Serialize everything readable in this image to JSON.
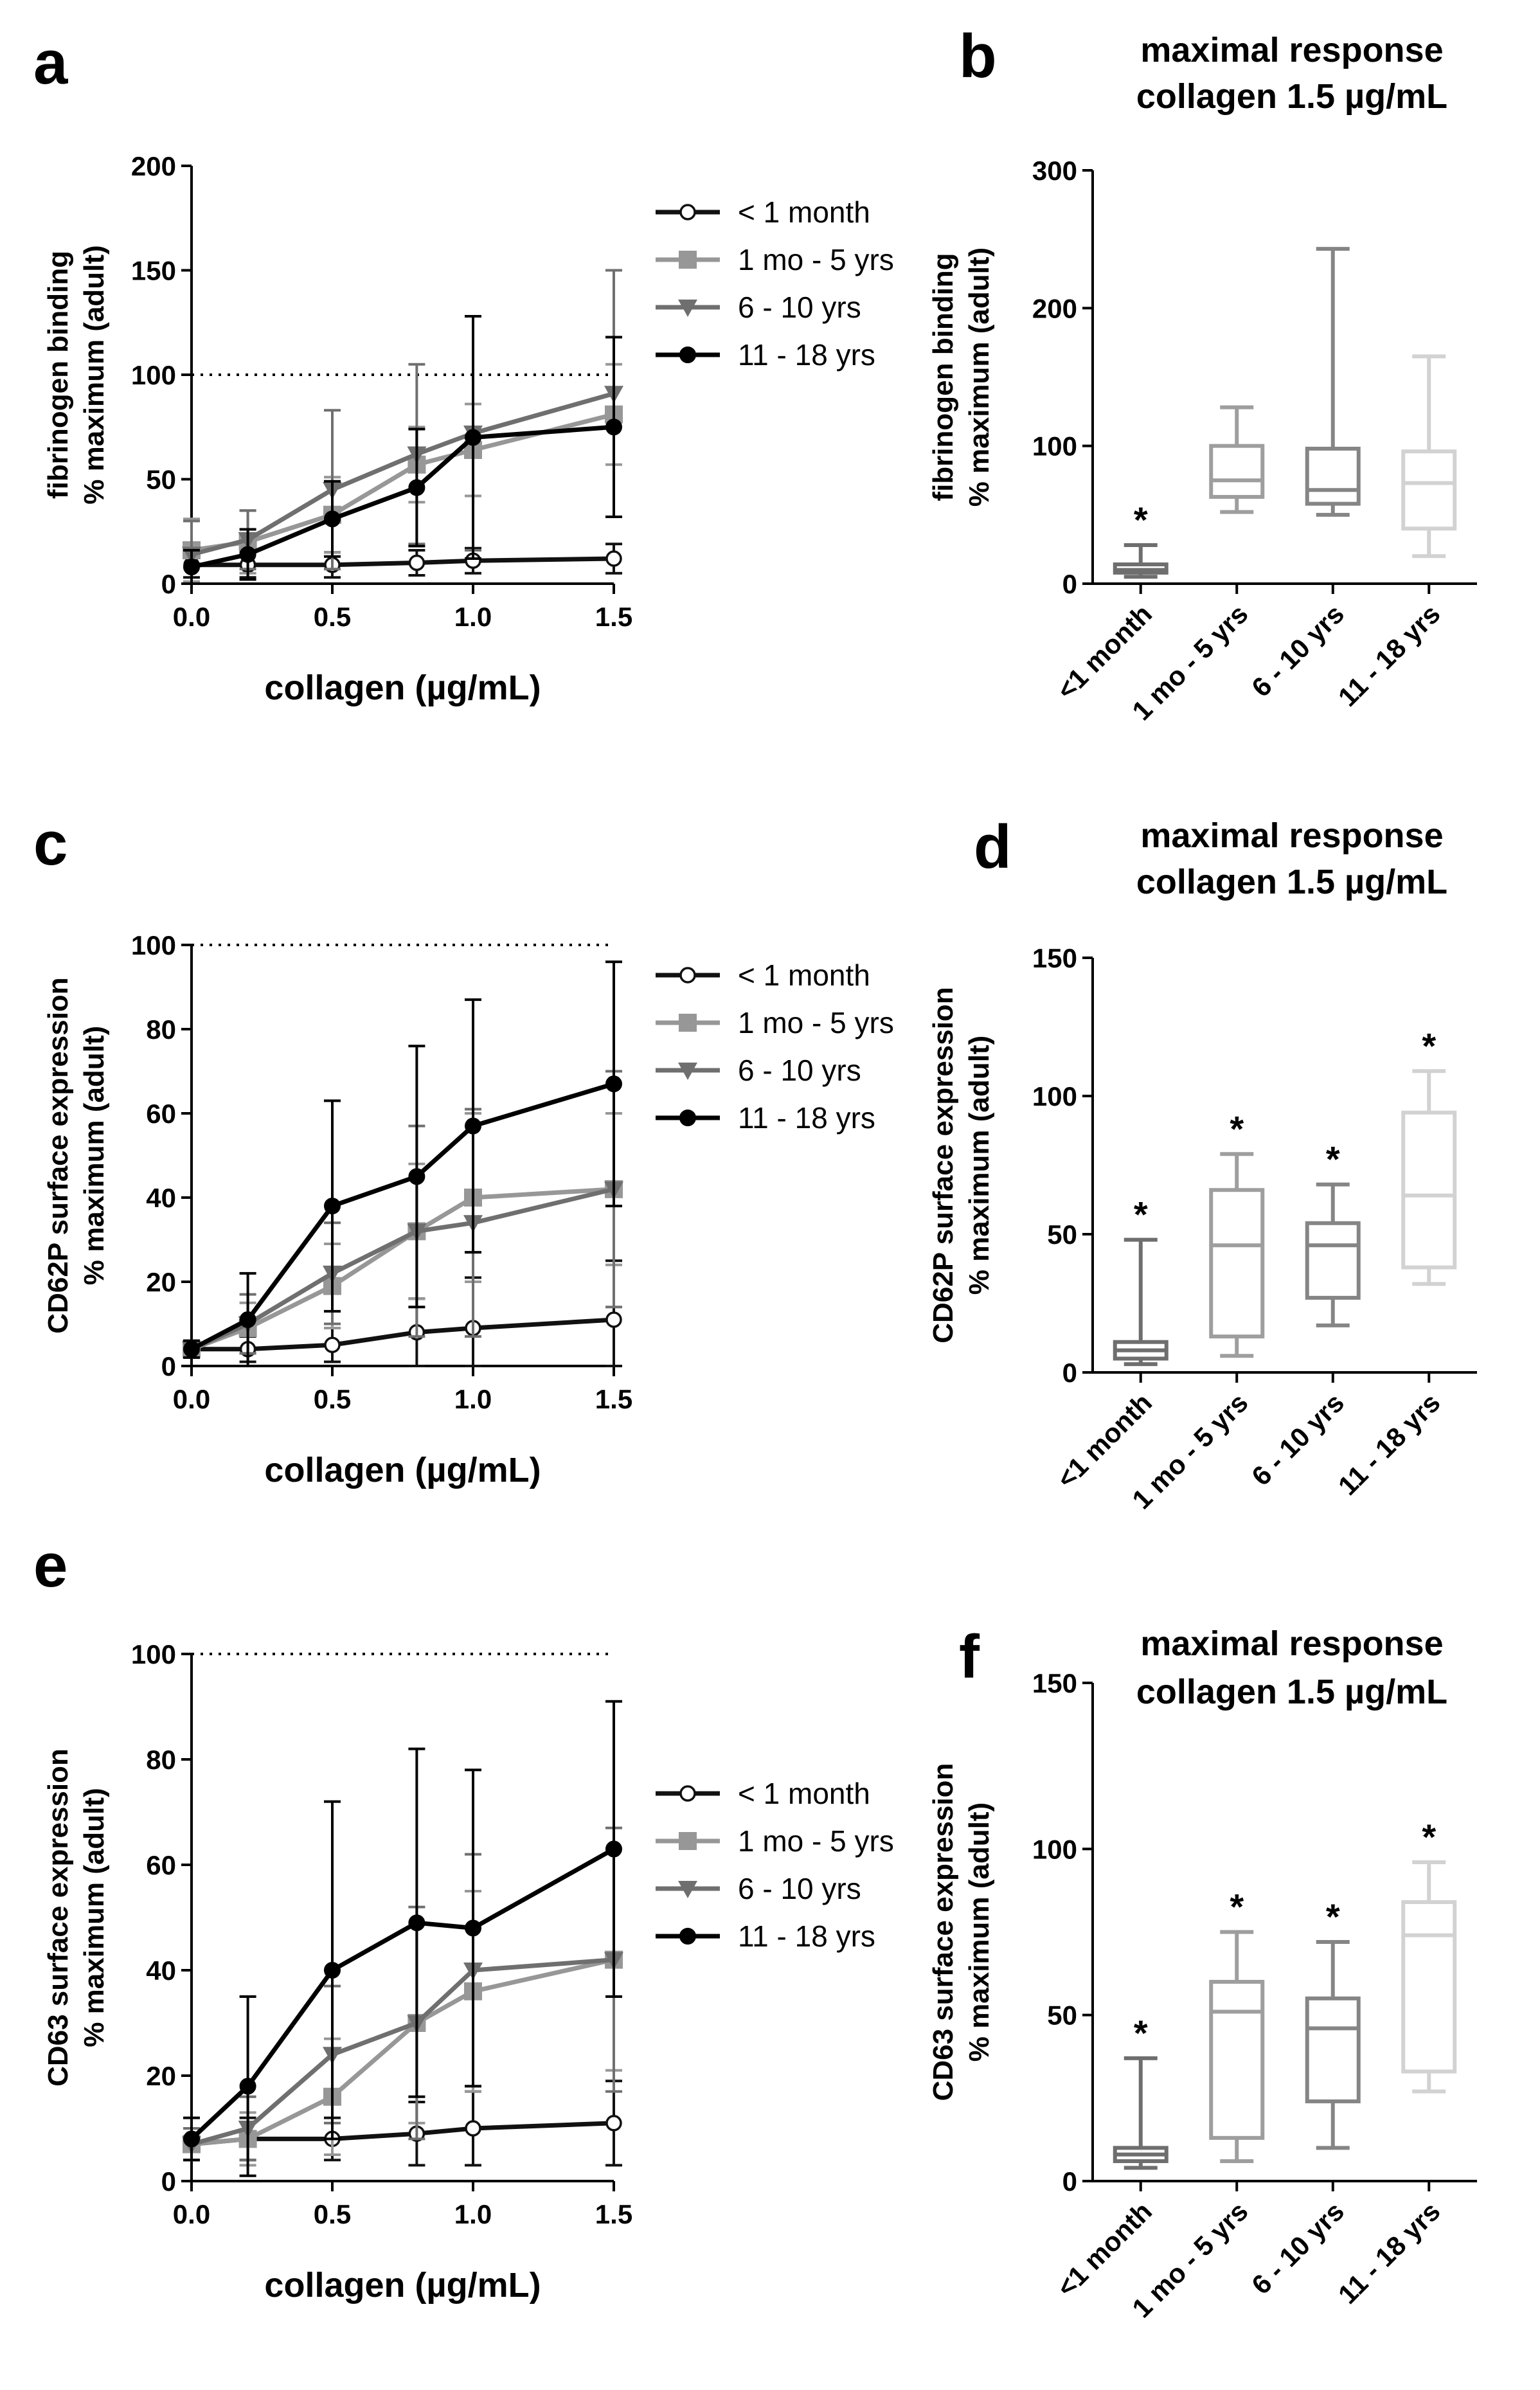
{
  "colors": {
    "lt1m": "#111111",
    "m1y5": "#979797",
    "y6_10": "#6f6f6f",
    "y11_18": "#000000",
    "box_lt1m": "#6e6e6e",
    "box_1mo5": "#9e9e9e",
    "box_6_10": "#858585",
    "box_11_18": "#d2d2d2"
  },
  "chart_data": [
    {
      "panel": "a",
      "type": "line",
      "title": "",
      "xlabel": "collagen (µg/mL)",
      "ylabel": [
        "fibrinogen binding",
        "% maximum (adult)"
      ],
      "x": [
        0.0,
        0.2,
        0.5,
        0.8,
        1.0,
        1.5
      ],
      "xticks": [
        0.0,
        0.5,
        1.0,
        1.5
      ],
      "xtick_labels": [
        "0.0",
        "0.5",
        "1.0",
        "1.5"
      ],
      "xlim": [
        0,
        1.5
      ],
      "ylim": [
        0,
        200
      ],
      "yticks": [
        0,
        50,
        100,
        150,
        200
      ],
      "reference_line": 100,
      "legend": [
        "< 1 month",
        "1 mo - 5 yrs",
        "6 - 10 yrs",
        "11 - 18 yrs"
      ],
      "series": [
        {
          "name": "< 1 month",
          "marker": "open-circle",
          "color": "#111111",
          "values": [
            9,
            9,
            9,
            10,
            11,
            12
          ],
          "err": [
            6,
            6,
            6,
            6,
            6,
            7
          ]
        },
        {
          "name": "1 mo - 5 yrs",
          "marker": "square",
          "color": "#979797",
          "values": [
            16,
            20,
            33,
            57,
            64,
            81
          ],
          "err": [
            15,
            15,
            18,
            18,
            22,
            24
          ]
        },
        {
          "name": "6 - 10 yrs",
          "marker": "triangle-down",
          "color": "#6f6f6f",
          "values": [
            14,
            21,
            45,
            62,
            72,
            91
          ],
          "err": [
            16,
            14,
            38,
            43,
            56,
            59
          ]
        },
        {
          "name": "11 - 18 yrs",
          "marker": "filled-circle",
          "color": "#000000",
          "values": [
            8,
            14,
            31,
            46,
            70,
            75
          ],
          "err": [
            8,
            12,
            18,
            28,
            58,
            43
          ]
        }
      ]
    },
    {
      "panel": "b",
      "type": "box",
      "title": [
        "maximal response",
        "collagen 1.5 µg/mL"
      ],
      "ylabel": [
        "fibrinogen binding",
        "% maximum (adult)"
      ],
      "ylim": [
        0,
        300
      ],
      "yticks": [
        0,
        100,
        200,
        300
      ],
      "categories": [
        "<1 month",
        "1 mo - 5 yrs",
        "6 - 10 yrs",
        "11 - 18 yrs"
      ],
      "boxes": [
        {
          "min": 5,
          "q1": 8,
          "median": 10,
          "q3": 14,
          "max": 28,
          "color": "#6e6e6e",
          "star": true
        },
        {
          "min": 52,
          "q1": 63,
          "median": 75,
          "q3": 100,
          "max": 128,
          "color": "#9e9e9e",
          "star": false
        },
        {
          "min": 50,
          "q1": 58,
          "median": 68,
          "q3": 98,
          "max": 243,
          "color": "#858585",
          "star": false
        },
        {
          "min": 20,
          "q1": 40,
          "median": 73,
          "q3": 96,
          "max": 165,
          "color": "#d2d2d2",
          "star": false
        }
      ],
      "star_label": "*"
    },
    {
      "panel": "c",
      "type": "line",
      "title": "",
      "xlabel": "collagen (µg/mL)",
      "ylabel": [
        "CD62P surface expression",
        "% maximum (adult)"
      ],
      "x": [
        0.0,
        0.2,
        0.5,
        0.8,
        1.0,
        1.5
      ],
      "xticks": [
        0.0,
        0.5,
        1.0,
        1.5
      ],
      "xtick_labels": [
        "0.0",
        "0.5",
        "1.0",
        "1.5"
      ],
      "xlim": [
        0,
        1.5
      ],
      "ylim": [
        0,
        100
      ],
      "yticks": [
        0,
        20,
        40,
        60,
        80,
        100
      ],
      "reference_line": 100,
      "legend": [
        "< 1 month",
        "1 mo - 5 yrs",
        "6 - 10 yrs",
        "11 - 18 yrs"
      ],
      "series": [
        {
          "name": "< 1 month",
          "marker": "open-circle",
          "color": "#111111",
          "values": [
            4,
            4,
            5,
            8,
            9,
            11
          ],
          "err": [
            2,
            3,
            4,
            8,
            12,
            14
          ]
        },
        {
          "name": "1 mo - 5 yrs",
          "marker": "square",
          "color": "#979797",
          "values": [
            4,
            9,
            19,
            32,
            40,
            42
          ],
          "err": [
            2,
            6,
            10,
            16,
            20,
            18
          ]
        },
        {
          "name": "6 - 10 yrs",
          "marker": "triangle-down",
          "color": "#6f6f6f",
          "values": [
            4,
            10,
            22,
            32,
            34,
            42
          ],
          "err": [
            2,
            7,
            12,
            25,
            27,
            28
          ]
        },
        {
          "name": "11 - 18 yrs",
          "marker": "filled-circle",
          "color": "#000000",
          "values": [
            4,
            11,
            38,
            45,
            57,
            67
          ],
          "err": [
            2,
            11,
            25,
            31,
            30,
            29
          ]
        }
      ]
    },
    {
      "panel": "d",
      "type": "box",
      "title": [
        "maximal response",
        "collagen 1.5 µg/mL"
      ],
      "ylabel": [
        "CD62P surface expression",
        "% maximum (adult)"
      ],
      "ylim": [
        0,
        150
      ],
      "yticks": [
        0,
        50,
        100,
        150
      ],
      "categories": [
        "<1 month",
        "1 mo - 5 yrs",
        "6 - 10 yrs",
        "11 - 18 yrs"
      ],
      "boxes": [
        {
          "min": 3,
          "q1": 5,
          "median": 8,
          "q3": 11,
          "max": 48,
          "color": "#6e6e6e",
          "star": true
        },
        {
          "min": 6,
          "q1": 13,
          "median": 46,
          "q3": 66,
          "max": 79,
          "color": "#9e9e9e",
          "star": true
        },
        {
          "min": 17,
          "q1": 27,
          "median": 46,
          "q3": 54,
          "max": 68,
          "color": "#858585",
          "star": true
        },
        {
          "min": 32,
          "q1": 38,
          "median": 64,
          "q3": 94,
          "max": 109,
          "color": "#d2d2d2",
          "star": true
        }
      ],
      "star_label": "*"
    },
    {
      "panel": "e",
      "type": "line",
      "title": "",
      "xlabel": "collagen (µg/mL)",
      "ylabel": [
        "CD63 surface expression",
        "% maximum (adult)"
      ],
      "x": [
        0.0,
        0.2,
        0.5,
        0.8,
        1.0,
        1.5
      ],
      "xticks": [
        0.0,
        0.5,
        1.0,
        1.5
      ],
      "xtick_labels": [
        "0.0",
        "0.5",
        "1.0",
        "1.5"
      ],
      "xlim": [
        0,
        1.5
      ],
      "ylim": [
        0,
        100
      ],
      "yticks": [
        0,
        20,
        40,
        60,
        80,
        100
      ],
      "reference_line": 100,
      "legend": [
        "< 1 month",
        "1 mo - 5 yrs",
        "6 - 10 yrs",
        "11 - 18 yrs"
      ],
      "series": [
        {
          "name": "< 1 month",
          "marker": "open-circle",
          "color": "#111111",
          "values": [
            7,
            8,
            8,
            9,
            10,
            11
          ],
          "err": [
            3,
            4,
            4,
            6,
            7,
            8
          ]
        },
        {
          "name": "1 mo - 5 yrs",
          "marker": "square",
          "color": "#979797",
          "values": [
            7,
            8,
            16,
            30,
            36,
            42
          ],
          "err": [
            3,
            5,
            11,
            19,
            19,
            21
          ]
        },
        {
          "name": "6 - 10 yrs",
          "marker": "triangle-down",
          "color": "#6f6f6f",
          "values": [
            7,
            10,
            24,
            30,
            40,
            42
          ],
          "err": [
            3,
            6,
            13,
            22,
            22,
            25
          ]
        },
        {
          "name": "11 - 18 yrs",
          "marker": "filled-circle",
          "color": "#000000",
          "values": [
            8,
            18,
            40,
            49,
            48,
            63
          ],
          "err": [
            4,
            17,
            32,
            33,
            30,
            28
          ]
        }
      ]
    },
    {
      "panel": "f",
      "type": "box",
      "title": [
        "maximal response",
        "collagen 1.5 µg/mL"
      ],
      "ylabel": [
        "CD63 surface expression",
        "% maximum (adult)"
      ],
      "ylim": [
        0,
        150
      ],
      "yticks": [
        0,
        50,
        100,
        150
      ],
      "categories": [
        "<1 month",
        "1 mo - 5 yrs",
        "6 - 10 yrs",
        "11 - 18 yrs"
      ],
      "boxes": [
        {
          "min": 4,
          "q1": 6,
          "median": 8,
          "q3": 10,
          "max": 37,
          "color": "#6e6e6e",
          "star": true
        },
        {
          "min": 6,
          "q1": 13,
          "median": 51,
          "q3": 60,
          "max": 75,
          "color": "#9e9e9e",
          "star": true
        },
        {
          "min": 10,
          "q1": 24,
          "median": 46,
          "q3": 55,
          "max": 72,
          "color": "#858585",
          "star": true
        },
        {
          "min": 27,
          "q1": 33,
          "median": 74,
          "q3": 84,
          "max": 96,
          "color": "#d2d2d2",
          "star": true
        }
      ],
      "star_label": "*"
    }
  ]
}
